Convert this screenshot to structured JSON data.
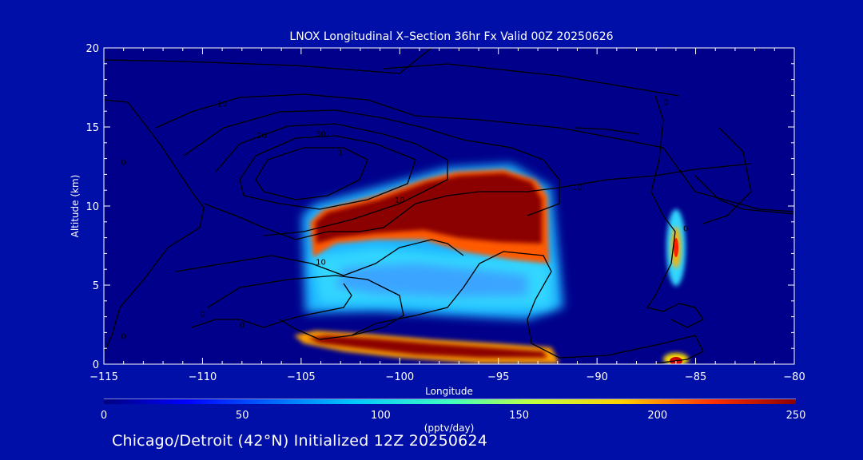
{
  "chart_data": {
    "type": "heatmap",
    "title": "LNOX Longitudinal X–Section 36hr  Fx Valid 00Z 20250626",
    "xlabel": "Longitude",
    "ylabel": "Altitude (km)",
    "xlim": [
      -115,
      -80
    ],
    "ylim": [
      0,
      20
    ],
    "x_ticks": [
      -115,
      -110,
      -105,
      -100,
      -95,
      -90,
      -85,
      -80
    ],
    "x_tick_labels": [
      "−115",
      "−110",
      "−105",
      "−100",
      "−95",
      "−90",
      "−85",
      "−80"
    ],
    "y_ticks": [
      0,
      5,
      10,
      15,
      20
    ],
    "y_tick_labels": [
      "0",
      "5",
      "10",
      "15",
      "20"
    ],
    "colorbar": {
      "label": "(pptv/day)",
      "range": [
        0,
        250
      ],
      "ticks": [
        0,
        50,
        100,
        150,
        200,
        250
      ],
      "tick_labels": [
        "0",
        "50",
        "100",
        "150",
        "200",
        "250"
      ],
      "colormap": "jet"
    },
    "shaded_regions": [
      {
        "lon": [
          -104.5,
          -92.5
        ],
        "alt": [
          7.5,
          12
        ],
        "value": 250
      },
      {
        "lon": [
          -105,
          -92.5
        ],
        "alt": [
          4.5,
          7.5
        ],
        "value": 80
      },
      {
        "lon": [
          -105,
          -91
        ],
        "alt": [
          0.8,
          1.8
        ],
        "value": 250
      },
      {
        "lon": [
          -86,
          -85.5
        ],
        "alt": [
          6.5,
          8.5
        ],
        "value": 230
      },
      {
        "lon": [
          -86,
          -85.5
        ],
        "alt": [
          0,
          0.8
        ],
        "value": 240
      }
    ],
    "contour_labels": [
      {
        "text": "10",
        "lon": -109,
        "alt": 16.5
      },
      {
        "text": "20",
        "lon": -107,
        "alt": 14.5
      },
      {
        "text": "30",
        "lon": -104,
        "alt": 14.6
      },
      {
        "text": "1",
        "lon": -103,
        "alt": 13.4
      },
      {
        "text": "0",
        "lon": -114,
        "alt": 12.8
      },
      {
        "text": "10",
        "lon": -100,
        "alt": 10.4
      },
      {
        "text": "10",
        "lon": -104,
        "alt": 6.5
      },
      {
        "text": "10",
        "lon": -91,
        "alt": 11.2
      },
      {
        "text": "0",
        "lon": -85.5,
        "alt": 8.6
      },
      {
        "text": "0",
        "lon": -110,
        "alt": 3.2
      },
      {
        "text": "0",
        "lon": -108,
        "alt": 2.5
      },
      {
        "text": "0",
        "lon": -114,
        "alt": 1.8
      },
      {
        "text": "0",
        "lon": -86.5,
        "alt": 16.6
      }
    ]
  },
  "footer": {
    "text": "Chicago/Detroit (42°N) Initialized 12Z 20250624"
  },
  "colors": {
    "background": "#000fa8",
    "plot_background": "#00008b",
    "contour": "#000000",
    "text": "#ffffff"
  }
}
